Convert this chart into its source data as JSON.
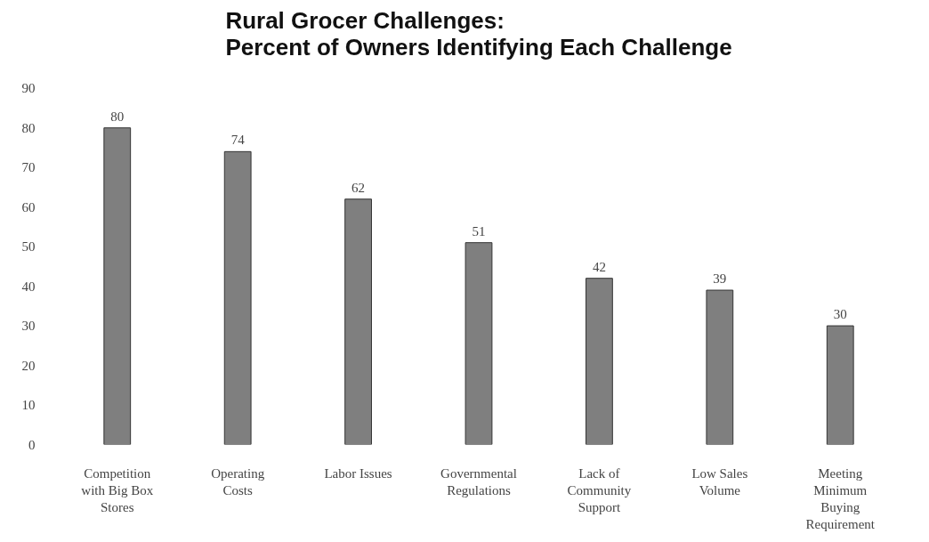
{
  "chart_data": {
    "type": "bar",
    "title": "Rural Grocer Challenges:\nPercent of Owners Identifying Each Challenge",
    "categories": [
      "Competition with Big Box Stores",
      "Operating Costs",
      "Labor Issues",
      "Governmental Regulations",
      "Lack of Community Support",
      "Low Sales Volume",
      "Meeting Minimum Buying Requirement"
    ],
    "values": [
      80,
      74,
      62,
      51,
      42,
      39,
      30
    ],
    "color": "#7f7f7f",
    "ylim": [
      0,
      90
    ],
    "yticks": [
      0,
      10,
      20,
      30,
      40,
      50,
      60,
      70,
      80,
      90
    ],
    "data_labels": true
  }
}
